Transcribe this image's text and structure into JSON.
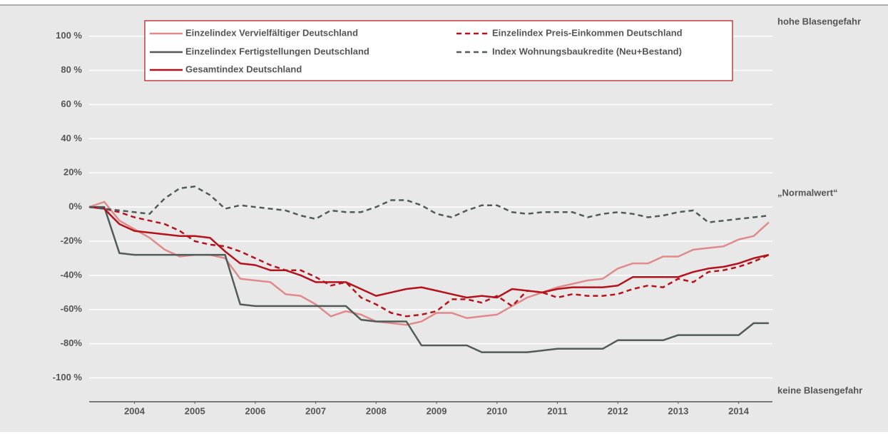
{
  "chart_data": {
    "type": "line",
    "xlim": [
      2003.75,
      2015.06
    ],
    "ylim": [
      -114,
      117
    ],
    "yticks": [
      {
        "value": 100,
        "label": "100 %"
      },
      {
        "value": 80,
        "label": "80 %"
      },
      {
        "value": 60,
        "label": "60 %"
      },
      {
        "value": 40,
        "label": "40 %"
      },
      {
        "value": 20,
        "label": "20%"
      },
      {
        "value": 0,
        "label": "0%"
      },
      {
        "value": -20,
        "label": "-20%"
      },
      {
        "value": -40,
        "label": "-40%"
      },
      {
        "value": -60,
        "label": "-60%"
      },
      {
        "value": -80,
        "label": "-80%"
      },
      {
        "value": -100,
        "label": "-100 %"
      }
    ],
    "xticks": [
      {
        "value": 2004.5,
        "label": "2004"
      },
      {
        "value": 2005.5,
        "label": "2005"
      },
      {
        "value": 2006.5,
        "label": "2006"
      },
      {
        "value": 2007.5,
        "label": "2007"
      },
      {
        "value": 2008.5,
        "label": "2008"
      },
      {
        "value": 2009.5,
        "label": "2009"
      },
      {
        "value": 2010.5,
        "label": "2010"
      },
      {
        "value": 2011.5,
        "label": "2011"
      },
      {
        "value": 2012.5,
        "label": "2012"
      },
      {
        "value": 2013.5,
        "label": "2013"
      },
      {
        "value": 2014.5,
        "label": "2014"
      }
    ],
    "grid": true,
    "legend": "top",
    "annotations": [
      "hohe Blasengefahr",
      "„Normalwert“",
      "keine Blasengefahr"
    ],
    "x": [
      2003.75,
      2004,
      2004.25,
      2004.5,
      2004.75,
      2005,
      2005.25,
      2005.5,
      2005.75,
      2006,
      2006.25,
      2006.5,
      2006.75,
      2007,
      2007.25,
      2007.5,
      2007.75,
      2008,
      2008.25,
      2008.5,
      2008.75,
      2009,
      2009.25,
      2009.5,
      2009.75,
      2010,
      2010.25,
      2010.5,
      2010.75,
      2011,
      2011.25,
      2011.5,
      2011.75,
      2012,
      2012.25,
      2012.5,
      2012.75,
      2013,
      2013.25,
      2013.5,
      2013.75,
      2014,
      2014.25,
      2014.5,
      2014.75,
      2015
    ],
    "series": [
      {
        "name": "Einzelindex Vervielfältiger Deutschland",
        "color": "#e08a8a",
        "dash": false,
        "values": [
          0,
          3,
          -8,
          -13,
          -18,
          -25,
          -29,
          -28,
          -28,
          -30,
          -42,
          -43,
          -44,
          -51,
          -52,
          -57,
          -64,
          -61,
          -63,
          -67,
          -68,
          -69,
          -67,
          -62,
          -62,
          -65,
          -64,
          -63,
          -58,
          -53,
          -50,
          -47,
          -45,
          -43,
          -42,
          -36,
          -33,
          -33,
          -29,
          -29,
          -25,
          -24,
          -23,
          -19,
          -17,
          -9
        ]
      },
      {
        "name": "Einzelindex Fertigstellungen Deutschland",
        "color": "#4f5c57",
        "dash": false,
        "values": [
          0,
          0,
          -27,
          -28,
          -28,
          -28,
          -28,
          -28,
          -28,
          -28,
          -57,
          -58,
          -58,
          -58,
          -58,
          -58,
          -58,
          -58,
          -66,
          -67,
          -67,
          -67,
          -81,
          -81,
          -81,
          -81,
          -85,
          -85,
          -85,
          -85,
          -84,
          -83,
          -83,
          -83,
          -83,
          -78,
          -78,
          -78,
          -78,
          -75,
          -75,
          -75,
          -75,
          -75,
          -68,
          -68
        ]
      },
      {
        "name": "Gesamtindex Deutschland",
        "color": "#b5121b",
        "dash": false,
        "values": [
          0,
          -1,
          -10,
          -14,
          -15,
          -16,
          -17,
          -17,
          -18,
          -26,
          -33,
          -34,
          -37,
          -37,
          -40,
          -44,
          -44,
          -44,
          -48,
          -52,
          -50,
          -48,
          -47,
          -49,
          -51,
          -53,
          -52,
          -53,
          -48,
          -49,
          -50,
          -48,
          -47,
          -47,
          -47,
          -46,
          -41,
          -41,
          -41,
          -41,
          -38,
          -36,
          -35,
          -33,
          -30,
          -28
        ]
      },
      {
        "name": "Einzelindex Preis-Einkommen Deutschland",
        "color": "#b5121b",
        "dash": true,
        "values": [
          0,
          -1,
          -3,
          -6,
          -8,
          -10,
          -14,
          -20,
          -22,
          -23,
          -26,
          -30,
          -34,
          -37,
          -37,
          -41,
          -46,
          -44,
          -53,
          -57,
          -62,
          -64,
          -63,
          -61,
          -54,
          -54,
          -56,
          -52,
          -58,
          -49,
          -50,
          -53,
          -51,
          -52,
          -52,
          -51,
          -48,
          -46,
          -47,
          -42,
          -44,
          -38,
          -37,
          -35,
          -32,
          -28
        ]
      },
      {
        "name": "Index Wohnungsbaukredite (Neu+Bestand)",
        "color": "#4f5c57",
        "dash": true,
        "values": [
          0,
          -1,
          -2,
          -3,
          -4,
          5,
          11,
          12,
          7,
          -1,
          1,
          0,
          -1,
          -2,
          -5,
          -7,
          -2,
          -3,
          -3,
          0,
          4,
          4,
          1,
          -4,
          -6,
          -2,
          1,
          1,
          -3,
          -4,
          -3,
          -3,
          -3,
          -6,
          -4,
          -3,
          -4,
          -6,
          -5,
          -3,
          -2,
          -9,
          -8,
          -7,
          -6,
          -5
        ]
      }
    ]
  }
}
